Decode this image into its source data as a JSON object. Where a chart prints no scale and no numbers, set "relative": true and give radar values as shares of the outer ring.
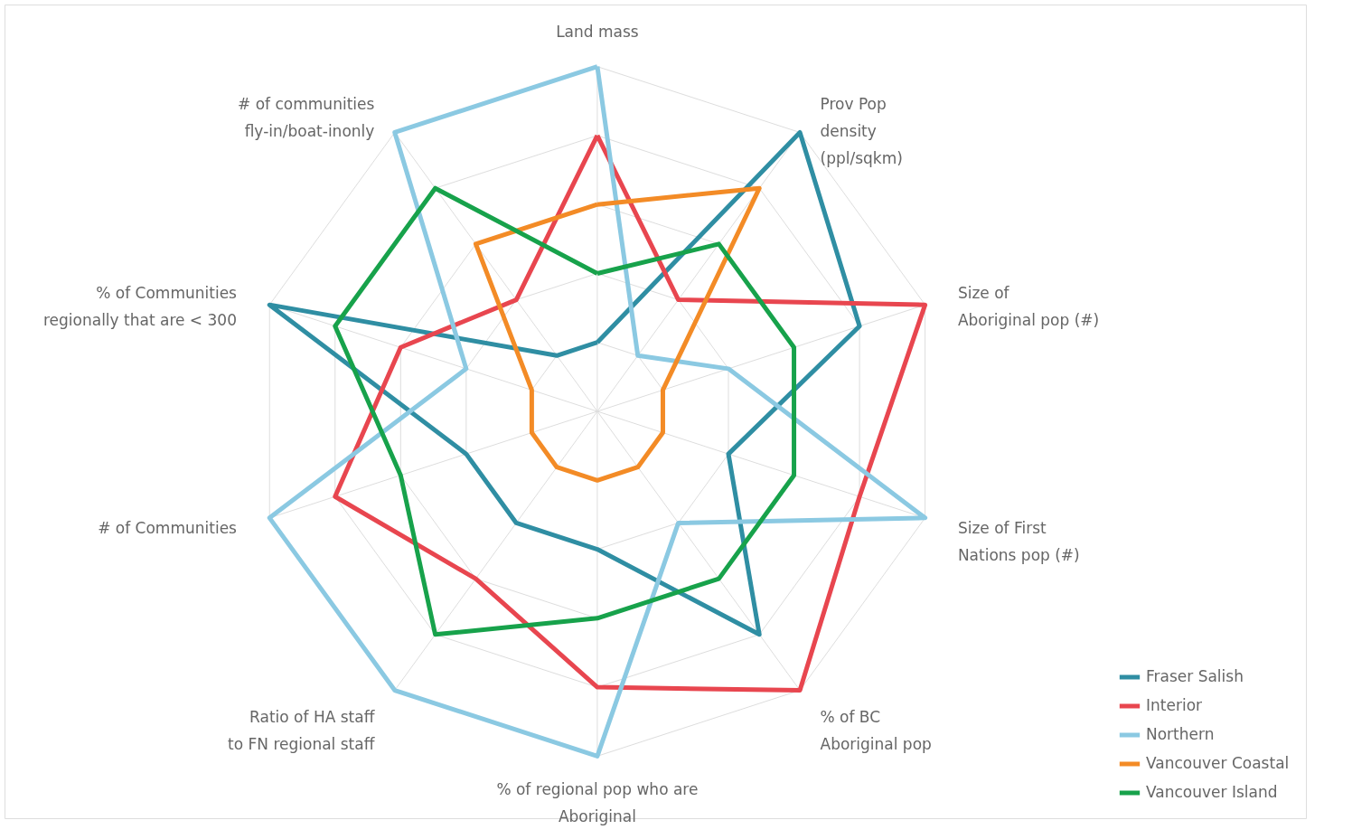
{
  "chart_data": {
    "type": "radar",
    "relative": true,
    "grid": true,
    "legend": "bottom right",
    "categories": [
      "Land mass",
      "Prov Pop\ndensity\n(ppl/sqkm)",
      "Size of\nAboriginal pop (#)",
      "Size of First\nNations pop (#)",
      "% of BC\nAboriginal pop",
      "% of regional pop who are\nAboriginal",
      "Ratio of HA staff\nto FN regional staff",
      "# of Communities",
      "% of Communities\nregionally that are < 300",
      "# of communities\nfly-in/boat-inonly"
    ],
    "series": [
      {
        "name": "Fraser Salish",
        "color": "#2f8ea3",
        "values": [
          0.2,
          1.0,
          0.8,
          0.4,
          0.8,
          0.4,
          0.4,
          0.4,
          1.0,
          0.2
        ]
      },
      {
        "name": "Interior",
        "color": "#e8464f",
        "values": [
          0.8,
          0.4,
          1.0,
          0.8,
          1.0,
          0.8,
          0.6,
          0.8,
          0.6,
          0.4
        ]
      },
      {
        "name": "Northern",
        "color": "#8bc9e2",
        "values": [
          1.0,
          0.2,
          0.4,
          1.0,
          0.4,
          1.0,
          1.0,
          1.0,
          0.4,
          1.0
        ]
      },
      {
        "name": "Vancouver Coastal",
        "color": "#f38b26",
        "values": [
          0.6,
          0.8,
          0.2,
          0.2,
          0.2,
          0.2,
          0.2,
          0.2,
          0.2,
          0.6
        ]
      },
      {
        "name": "Vancouver Island",
        "color": "#17a24b",
        "values": [
          0.4,
          0.6,
          0.6,
          0.6,
          0.6,
          0.6,
          0.8,
          0.6,
          0.8,
          0.8
        ]
      }
    ]
  }
}
